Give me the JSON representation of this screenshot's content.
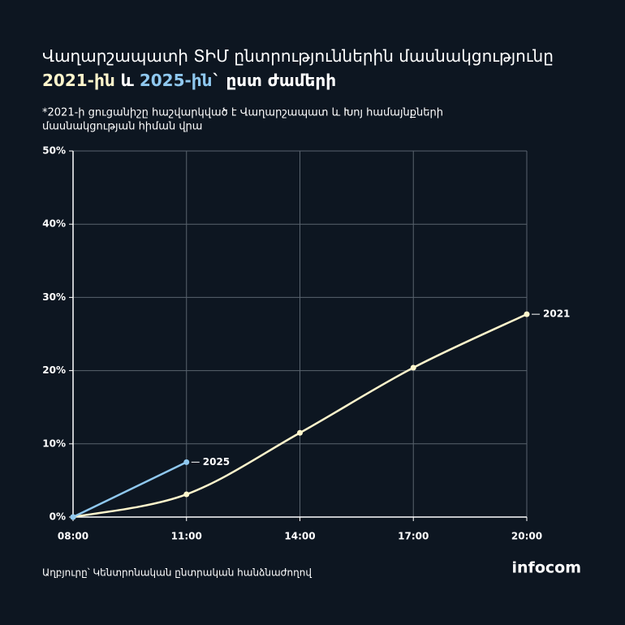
{
  "chart_data": {
    "type": "line",
    "title_lines": [
      [
        {
          "text": "Վաղարշապատի ՏԻՄ ընտրություններին մասնակցությունը",
          "color": "#ffffff"
        }
      ],
      [
        {
          "text": "2021-ին",
          "color": "#fff6cc"
        },
        {
          "text": " և ",
          "color": "#ffffff"
        },
        {
          "text": "2025-ին",
          "color": "#8fc8ef"
        },
        {
          "text": "` ըստ ժամերի",
          "color": "#ffffff"
        }
      ]
    ],
    "note_lines": [
      "*2021-ի ցուցանիշը հաշվարկված է Վաղարշապատ և Խոյ համայնքների",
      "մասնակցության հիման վրա"
    ],
    "categories": [
      "08:00",
      "11:00",
      "14:00",
      "17:00",
      "20:00"
    ],
    "series": [
      {
        "name": "2021",
        "color": "#fff6cc",
        "smooth": true,
        "values": [
          0,
          3.1,
          11.5,
          20.4,
          27.7
        ]
      },
      {
        "name": "2025",
        "color": "#8fc8ef",
        "smooth": false,
        "values": [
          0,
          7.5,
          null,
          null,
          null
        ]
      }
    ],
    "ylim": [
      0,
      50
    ],
    "yticks": [
      {
        "value": 0,
        "label": "0%"
      },
      {
        "value": 10,
        "label": "10%"
      },
      {
        "value": 20,
        "label": "20%"
      },
      {
        "value": 30,
        "label": "30%"
      },
      {
        "value": 40,
        "label": "40%"
      },
      {
        "value": 50,
        "label": "50%"
      }
    ],
    "grid": true,
    "source": "Աղբյուրը՝ Կենտրոնական ընտրական հանձնաժողով",
    "logo": "infocom"
  }
}
